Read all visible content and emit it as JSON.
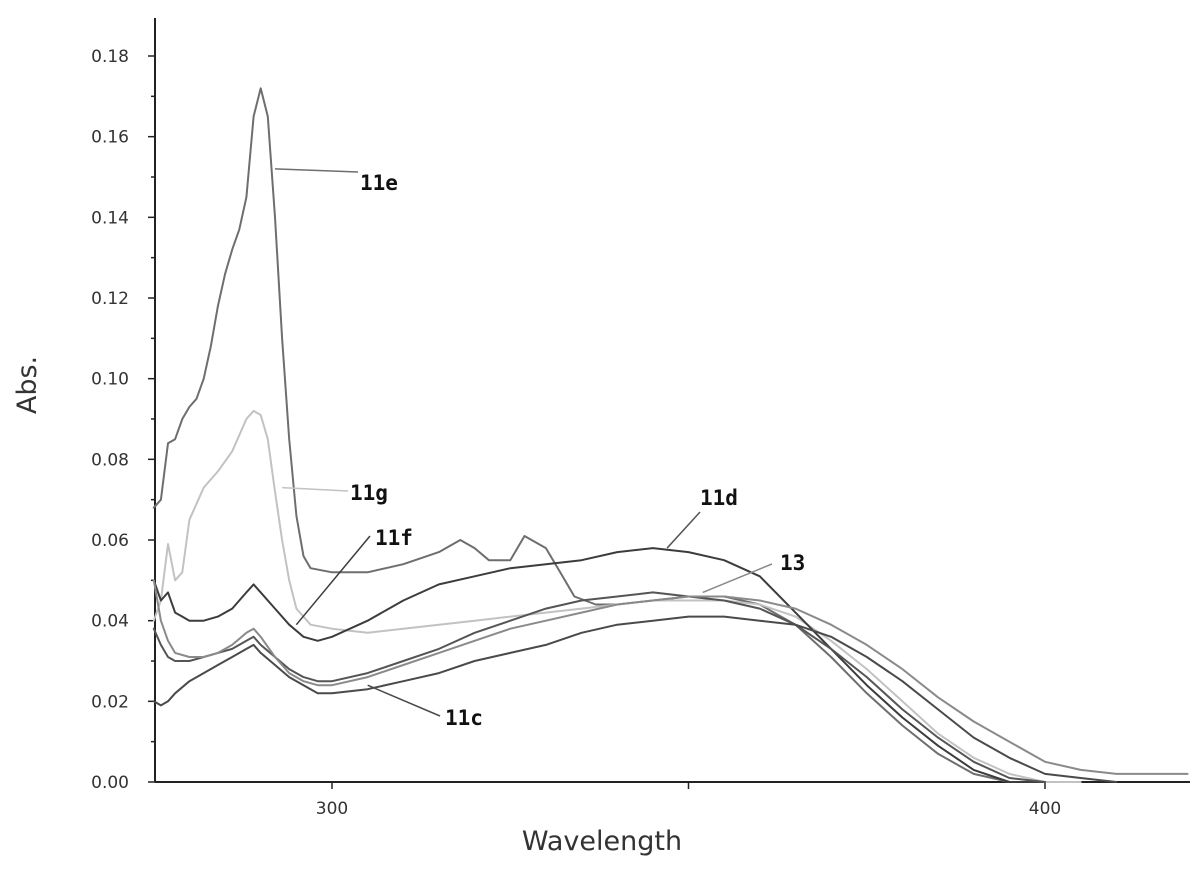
{
  "chart_data": {
    "type": "line",
    "title": "",
    "xlabel": "Wavelength",
    "ylabel": "Abs.",
    "xlim": [
      275,
      420
    ],
    "ylim": [
      0.0,
      0.19
    ],
    "x_ticks": [
      300,
      350,
      400
    ],
    "x_tick_labels": [
      "300",
      "",
      "400"
    ],
    "y_ticks": [
      0.0,
      0.02,
      0.04,
      0.06,
      0.08,
      0.1,
      0.12,
      0.14,
      0.16,
      0.18
    ],
    "y_tick_labels": [
      "0.00",
      "0.02",
      "0.04",
      "0.06",
      "0.08",
      "0.10",
      "0.12",
      "0.14",
      "0.16",
      "0.18"
    ],
    "grid": false,
    "legend": "none",
    "series": [
      {
        "name": "11e",
        "color": "#6e6e6e",
        "points": [
          [
            275,
            0.068
          ],
          [
            276,
            0.07
          ],
          [
            277,
            0.084
          ],
          [
            278,
            0.085
          ],
          [
            279,
            0.09
          ],
          [
            280,
            0.093
          ],
          [
            281,
            0.095
          ],
          [
            282,
            0.1
          ],
          [
            283,
            0.108
          ],
          [
            284,
            0.118
          ],
          [
            285,
            0.126
          ],
          [
            286,
            0.132
          ],
          [
            287,
            0.137
          ],
          [
            288,
            0.145
          ],
          [
            289,
            0.165
          ],
          [
            290,
            0.172
          ],
          [
            291,
            0.165
          ],
          [
            292,
            0.14
          ],
          [
            293,
            0.11
          ],
          [
            294,
            0.085
          ],
          [
            295,
            0.066
          ],
          [
            296,
            0.056
          ],
          [
            297,
            0.053
          ],
          [
            300,
            0.052
          ],
          [
            305,
            0.052
          ],
          [
            310,
            0.054
          ],
          [
            315,
            0.057
          ],
          [
            318,
            0.06
          ],
          [
            320,
            0.058
          ],
          [
            322,
            0.055
          ],
          [
            325,
            0.055
          ],
          [
            327,
            0.061
          ],
          [
            330,
            0.058
          ],
          [
            332,
            0.052
          ],
          [
            334,
            0.046
          ],
          [
            337,
            0.044
          ],
          [
            340,
            0.044
          ],
          [
            345,
            0.045
          ],
          [
            350,
            0.046
          ],
          [
            355,
            0.046
          ],
          [
            360,
            0.044
          ],
          [
            365,
            0.039
          ],
          [
            370,
            0.031
          ],
          [
            375,
            0.022
          ],
          [
            380,
            0.014
          ],
          [
            385,
            0.007
          ],
          [
            390,
            0.002
          ],
          [
            395,
            0.0
          ],
          [
            400,
            0.0
          ]
        ]
      },
      {
        "name": "11g",
        "color": "#c2c2c2",
        "points": [
          [
            275,
            0.04
          ],
          [
            276,
            0.045
          ],
          [
            277,
            0.059
          ],
          [
            278,
            0.05
          ],
          [
            279,
            0.052
          ],
          [
            280,
            0.065
          ],
          [
            282,
            0.073
          ],
          [
            284,
            0.077
          ],
          [
            286,
            0.082
          ],
          [
            288,
            0.09
          ],
          [
            289,
            0.092
          ],
          [
            290,
            0.091
          ],
          [
            291,
            0.085
          ],
          [
            292,
            0.072
          ],
          [
            293,
            0.06
          ],
          [
            294,
            0.05
          ],
          [
            295,
            0.043
          ],
          [
            297,
            0.039
          ],
          [
            300,
            0.038
          ],
          [
            305,
            0.037
          ],
          [
            310,
            0.038
          ],
          [
            315,
            0.039
          ],
          [
            320,
            0.04
          ],
          [
            325,
            0.041
          ],
          [
            330,
            0.042
          ],
          [
            335,
            0.043
          ],
          [
            340,
            0.044
          ],
          [
            345,
            0.045
          ],
          [
            350,
            0.045
          ],
          [
            355,
            0.045
          ],
          [
            360,
            0.044
          ],
          [
            365,
            0.041
          ],
          [
            370,
            0.035
          ],
          [
            375,
            0.028
          ],
          [
            380,
            0.02
          ],
          [
            385,
            0.012
          ],
          [
            390,
            0.006
          ],
          [
            395,
            0.002
          ],
          [
            400,
            0.0
          ],
          [
            405,
            0.0
          ]
        ]
      },
      {
        "name": "11f",
        "color": "#3c3c3c",
        "points": [
          [
            275,
            0.05
          ],
          [
            276,
            0.045
          ],
          [
            277,
            0.047
          ],
          [
            278,
            0.042
          ],
          [
            279,
            0.041
          ],
          [
            280,
            0.04
          ],
          [
            282,
            0.04
          ],
          [
            284,
            0.041
          ],
          [
            286,
            0.043
          ],
          [
            288,
            0.047
          ],
          [
            289,
            0.049
          ],
          [
            290,
            0.047
          ],
          [
            292,
            0.043
          ],
          [
            294,
            0.039
          ],
          [
            296,
            0.036
          ],
          [
            298,
            0.035
          ],
          [
            300,
            0.036
          ],
          [
            305,
            0.04
          ],
          [
            310,
            0.045
          ],
          [
            315,
            0.049
          ],
          [
            320,
            0.051
          ],
          [
            325,
            0.053
          ],
          [
            330,
            0.054
          ],
          [
            335,
            0.055
          ],
          [
            340,
            0.057
          ],
          [
            345,
            0.058
          ],
          [
            350,
            0.057
          ],
          [
            355,
            0.055
          ],
          [
            360,
            0.051
          ],
          [
            365,
            0.042
          ],
          [
            370,
            0.033
          ],
          [
            375,
            0.024
          ],
          [
            380,
            0.016
          ],
          [
            385,
            0.009
          ],
          [
            390,
            0.003
          ],
          [
            395,
            0.0
          ],
          [
            400,
            0.0
          ]
        ]
      },
      {
        "name": "11d",
        "color": "#555555",
        "points": [
          [
            275,
            0.038
          ],
          [
            276,
            0.034
          ],
          [
            277,
            0.031
          ],
          [
            278,
            0.03
          ],
          [
            280,
            0.03
          ],
          [
            282,
            0.031
          ],
          [
            284,
            0.032
          ],
          [
            286,
            0.033
          ],
          [
            288,
            0.035
          ],
          [
            289,
            0.036
          ],
          [
            290,
            0.034
          ],
          [
            292,
            0.031
          ],
          [
            294,
            0.028
          ],
          [
            296,
            0.026
          ],
          [
            298,
            0.025
          ],
          [
            300,
            0.025
          ],
          [
            305,
            0.027
          ],
          [
            310,
            0.03
          ],
          [
            315,
            0.033
          ],
          [
            320,
            0.037
          ],
          [
            325,
            0.04
          ],
          [
            330,
            0.043
          ],
          [
            335,
            0.045
          ],
          [
            340,
            0.046
          ],
          [
            345,
            0.047
          ],
          [
            350,
            0.046
          ],
          [
            355,
            0.045
          ],
          [
            360,
            0.043
          ],
          [
            365,
            0.039
          ],
          [
            370,
            0.033
          ],
          [
            375,
            0.026
          ],
          [
            380,
            0.018
          ],
          [
            385,
            0.011
          ],
          [
            390,
            0.005
          ],
          [
            395,
            0.001
          ],
          [
            400,
            0.0
          ]
        ]
      },
      {
        "name": "13",
        "color": "#8a8a8a",
        "points": [
          [
            275,
            0.05
          ],
          [
            276,
            0.04
          ],
          [
            277,
            0.035
          ],
          [
            278,
            0.032
          ],
          [
            280,
            0.031
          ],
          [
            282,
            0.031
          ],
          [
            284,
            0.032
          ],
          [
            286,
            0.034
          ],
          [
            288,
            0.037
          ],
          [
            289,
            0.038
          ],
          [
            290,
            0.036
          ],
          [
            292,
            0.031
          ],
          [
            294,
            0.027
          ],
          [
            296,
            0.025
          ],
          [
            298,
            0.024
          ],
          [
            300,
            0.024
          ],
          [
            305,
            0.026
          ],
          [
            310,
            0.029
          ],
          [
            315,
            0.032
          ],
          [
            320,
            0.035
          ],
          [
            325,
            0.038
          ],
          [
            330,
            0.04
          ],
          [
            335,
            0.042
          ],
          [
            340,
            0.044
          ],
          [
            345,
            0.045
          ],
          [
            350,
            0.046
          ],
          [
            355,
            0.046
          ],
          [
            360,
            0.045
          ],
          [
            365,
            0.043
          ],
          [
            370,
            0.039
          ],
          [
            375,
            0.034
          ],
          [
            380,
            0.028
          ],
          [
            385,
            0.021
          ],
          [
            390,
            0.015
          ],
          [
            395,
            0.01
          ],
          [
            400,
            0.005
          ],
          [
            405,
            0.003
          ],
          [
            410,
            0.002
          ],
          [
            415,
            0.002
          ],
          [
            420,
            0.002
          ]
        ]
      },
      {
        "name": "11c",
        "color": "#4a4a4a",
        "points": [
          [
            275,
            0.02
          ],
          [
            276,
            0.019
          ],
          [
            277,
            0.02
          ],
          [
            278,
            0.022
          ],
          [
            280,
            0.025
          ],
          [
            282,
            0.027
          ],
          [
            284,
            0.029
          ],
          [
            286,
            0.031
          ],
          [
            288,
            0.033
          ],
          [
            289,
            0.034
          ],
          [
            290,
            0.032
          ],
          [
            292,
            0.029
          ],
          [
            294,
            0.026
          ],
          [
            296,
            0.024
          ],
          [
            298,
            0.022
          ],
          [
            300,
            0.022
          ],
          [
            305,
            0.023
          ],
          [
            310,
            0.025
          ],
          [
            315,
            0.027
          ],
          [
            320,
            0.03
          ],
          [
            325,
            0.032
          ],
          [
            330,
            0.034
          ],
          [
            335,
            0.037
          ],
          [
            340,
            0.039
          ],
          [
            345,
            0.04
          ],
          [
            350,
            0.041
          ],
          [
            355,
            0.041
          ],
          [
            360,
            0.04
          ],
          [
            365,
            0.039
          ],
          [
            370,
            0.036
          ],
          [
            375,
            0.031
          ],
          [
            380,
            0.025
          ],
          [
            385,
            0.018
          ],
          [
            390,
            0.011
          ],
          [
            395,
            0.006
          ],
          [
            400,
            0.002
          ],
          [
            405,
            0.001
          ],
          [
            410,
            0.0
          ]
        ]
      }
    ],
    "annotations": [
      {
        "text": "11e",
        "points_to": [
          292,
          0.152
        ],
        "series": "11e"
      },
      {
        "text": "11g",
        "points_to": [
          293,
          0.073
        ],
        "series": "11g"
      },
      {
        "text": "11f",
        "points_to": [
          295,
          0.039
        ],
        "series": "11f"
      },
      {
        "text": "11d",
        "points_to": [
          347,
          0.058
        ],
        "series": "11d"
      },
      {
        "text": "13",
        "points_to": [
          352,
          0.047
        ],
        "series": "13"
      },
      {
        "text": "11c",
        "points_to": [
          305,
          0.024
        ],
        "series": "11c"
      }
    ]
  }
}
